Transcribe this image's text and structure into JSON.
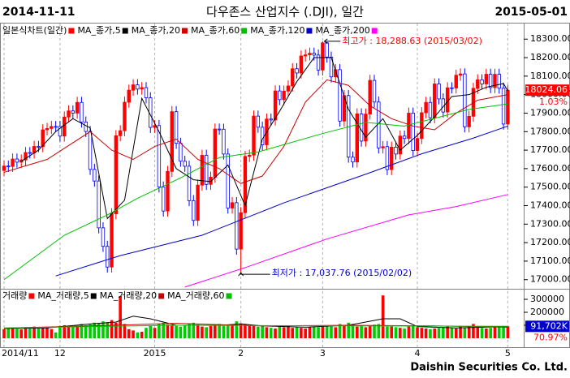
{
  "header": {
    "start_date": "2014-11-11",
    "title": "다우존스 산업지수 (.DJI), 일간",
    "end_date": "2015-05-01"
  },
  "footer": "Daishin Securities Co. Ltd.",
  "chart_data": [
    {
      "type": "candlestick",
      "legend_title": "일본식차트(일간)",
      "legend_color": "#ff0000",
      "up_color": "#ff0000",
      "down_color": "#0000ff",
      "x": [
        0,
        1,
        2,
        3,
        4,
        5,
        6,
        7,
        8,
        9,
        10,
        11,
        12,
        13,
        14,
        15,
        16,
        17,
        18,
        19,
        20,
        21,
        22,
        23,
        24,
        25,
        26,
        27,
        28,
        29,
        30,
        31,
        32,
        33,
        34,
        35,
        36,
        37,
        38,
        39,
        40,
        41,
        42,
        43,
        44,
        45,
        46,
        47,
        48,
        49,
        50,
        51,
        52,
        53,
        54,
        55,
        56,
        57,
        58,
        59,
        60,
        61,
        62,
        63,
        64,
        65,
        66,
        67,
        68,
        69,
        70,
        71,
        72,
        73,
        74,
        75,
        76,
        77,
        78,
        79,
        80,
        81,
        82,
        83,
        84,
        85,
        86,
        87,
        88,
        89,
        90,
        91,
        92,
        93,
        94,
        95,
        96,
        97,
        98,
        99,
        100,
        101,
        102,
        103,
        104,
        105,
        106,
        107,
        108,
        109,
        110,
        111,
        112,
        113,
        114,
        115,
        116,
        117
      ],
      "open": [
        17590,
        17614,
        17612,
        17652,
        17635,
        17647,
        17687,
        17685,
        17720,
        17719,
        17810,
        17817,
        17828,
        17828,
        17776,
        17879,
        17912,
        17900,
        17958,
        17852,
        17801,
        17596,
        17533,
        17280,
        17180,
        17068,
        17356,
        17778,
        17805,
        17959,
        18024,
        18053,
        18030,
        18038,
        17983,
        17823,
        17833,
        17501,
        17371,
        17585,
        17908,
        17737,
        17640,
        17613,
        17427,
        17320,
        17511,
        17672,
        17515,
        17554,
        17814,
        17813,
        17679,
        17387,
        17416,
        17165,
        17362,
        17666,
        17673,
        17884,
        17824,
        17729,
        17868,
        17863,
        18020,
        17973,
        18019,
        18047,
        18140,
        18117,
        18209,
        18215,
        18224,
        18214,
        18133,
        18280,
        18203,
        18096,
        18135,
        17857,
        17995,
        17662,
        17636,
        17896,
        17749,
        17895,
        18077,
        17960,
        17712,
        17719,
        17595,
        17716,
        17679,
        17776,
        17763,
        17900,
        17698,
        17763,
        17902,
        17958,
        17875,
        18058,
        17977,
        17906,
        18037,
        18036,
        18105,
        18112,
        17826,
        17883,
        18034,
        18080,
        18058,
        18110,
        18038,
        18110,
        18035,
        17841
      ],
      "high": [
        17644,
        17644,
        17682,
        17682,
        17677,
        17717,
        17717,
        17750,
        17750,
        17840,
        17847,
        17858,
        17858,
        17858,
        17909,
        17942,
        17942,
        17988,
        17988,
        17882,
        17831,
        17626,
        17563,
        17310,
        17210,
        17386,
        17808,
        17835,
        17989,
        18054,
        18083,
        18083,
        18068,
        18068,
        18013,
        17863,
        17863,
        17531,
        17615,
        17938,
        17938,
        17767,
        17670,
        17643,
        17457,
        17541,
        17702,
        17702,
        17584,
        17844,
        17844,
        17843,
        17709,
        17446,
        17446,
        17392,
        17696,
        17703,
        17914,
        17914,
        17854,
        17898,
        17898,
        18050,
        18050,
        18049,
        18077,
        18170,
        18170,
        18239,
        18245,
        18254,
        18254,
        18244,
        18288.63,
        18285,
        18233,
        18165,
        18165,
        18025,
        18025,
        17692,
        17926,
        17926,
        17925,
        18107,
        18107,
        17990,
        17749,
        17749,
        17746,
        17746,
        17806,
        17806,
        17930,
        17930,
        17793,
        17932,
        17988,
        17988,
        18088,
        18088,
        18007,
        18067,
        18067,
        18135,
        18142,
        18142,
        17913,
        18064,
        18110,
        18110,
        18140,
        18140,
        18140,
        18140,
        18065,
        18054
      ],
      "low": [
        17560,
        17582,
        17582,
        17605,
        17605,
        17617,
        17655,
        17655,
        17689,
        17689,
        17780,
        17787,
        17798,
        17746,
        17746,
        17849,
        17870,
        17870,
        17822,
        17771,
        17566,
        17503,
        17250,
        17150,
        17038,
        17038,
        17326,
        17748,
        17775,
        17929,
        17994,
        18000,
        18000,
        17953,
        17793,
        17793,
        17471,
        17341,
        17341,
        17555,
        17707,
        17610,
        17583,
        17397,
        17290,
        17290,
        17481,
        17485,
        17485,
        17524,
        17783,
        17649,
        17357,
        17357,
        17135,
        17037.76,
        17332,
        17636,
        17643,
        17794,
        17699,
        17699,
        17833,
        17833,
        17943,
        17943,
        17989,
        18017,
        18087,
        18087,
        18179,
        18185,
        18184,
        18103,
        18103,
        18173,
        18066,
        18066,
        17827,
        17827,
        17632,
        17606,
        17606,
        17719,
        17719,
        17865,
        17930,
        17682,
        17682,
        17565,
        17565,
        17649,
        17649,
        17733,
        17733,
        17668,
        17668,
        17733,
        17872,
        17845,
        17845,
        17947,
        17876,
        17876,
        18006,
        18006,
        18075,
        17796,
        17796,
        17853,
        18004,
        18028,
        18028,
        18008,
        18008,
        18005,
        17811,
        17811
      ],
      "close": [
        17614,
        17612,
        17652,
        17635,
        17647,
        17687,
        17685,
        17720,
        17719,
        17810,
        17817,
        17828,
        17828,
        17776,
        17879,
        17912,
        17900,
        17958,
        17852,
        17801,
        17596,
        17533,
        17280,
        17180,
        17068,
        17356,
        17778,
        17805,
        17959,
        18024,
        18053,
        18030,
        18038,
        17983,
        17823,
        17833,
        17501,
        17371,
        17585,
        17908,
        17737,
        17640,
        17613,
        17427,
        17320,
        17511,
        17672,
        17515,
        17554,
        17814,
        17813,
        17679,
        17387,
        17416,
        17165,
        17362,
        17666,
        17673,
        17884,
        17824,
        17729,
        17868,
        17863,
        18020,
        17973,
        18019,
        18047,
        18140,
        18117,
        18209,
        18215,
        18224,
        18214,
        18133,
        18280,
        18203,
        18096,
        18135,
        17857,
        17995,
        17662,
        17636,
        17896,
        17749,
        17895,
        18077,
        17960,
        17712,
        17719,
        17595,
        17716,
        17679,
        17776,
        17763,
        17900,
        17698,
        17763,
        17902,
        17958,
        17875,
        18058,
        17977,
        17906,
        18037,
        18036,
        18105,
        18112,
        17826,
        17883,
        18034,
        18080,
        18058,
        18110,
        18038,
        18110,
        18035,
        17841,
        18024
      ],
      "series": [
        {
          "name": "MA_종가,5",
          "color": "#000000",
          "x": [
            4,
            8,
            12,
            16,
            20,
            24,
            28,
            32,
            36,
            40,
            44,
            48,
            52,
            56,
            60,
            64,
            68,
            72,
            76,
            80,
            84,
            88,
            92,
            96,
            100,
            104,
            108,
            112,
            116,
            117
          ],
          "values": [
            17640,
            17700,
            17800,
            17870,
            17820,
            17330,
            17430,
            17980,
            17800,
            17600,
            17540,
            17530,
            17620,
            17400,
            17760,
            17910,
            18070,
            18200,
            18200,
            17920,
            17770,
            17870,
            17700,
            17780,
            17880,
            17990,
            18000,
            18040,
            18060,
            18020
          ]
        },
        {
          "name": "MA_종가,20",
          "color": "#cc0000",
          "x": [
            0,
            10,
            20,
            25,
            30,
            35,
            40,
            45,
            50,
            55,
            60,
            65,
            70,
            75,
            80,
            85,
            90,
            95,
            100,
            105,
            110,
            117
          ],
          "values": [
            17580,
            17650,
            17800,
            17700,
            17650,
            17720,
            17760,
            17650,
            17600,
            17520,
            17560,
            17720,
            17960,
            18080,
            18050,
            17940,
            17870,
            17830,
            17810,
            17900,
            17970,
            18000
          ]
        },
        {
          "name": "MA_종가,60",
          "color": "#00c000",
          "x": [
            0,
            14,
            24,
            31,
            41,
            50,
            59,
            74,
            84,
            93,
            108,
            117
          ],
          "values": [
            17000,
            17240,
            17350,
            17440,
            17550,
            17660,
            17690,
            17790,
            17850,
            17830,
            17920,
            17950
          ]
        },
        {
          "name": "MA_종가,120",
          "color": "#0000cc",
          "x": [
            12,
            27,
            46,
            65,
            84,
            97,
            109,
            117
          ],
          "values": [
            17020,
            17130,
            17240,
            17415,
            17570,
            17680,
            17765,
            17830
          ]
        },
        {
          "name": "MA_종가,200",
          "color": "#ff00ff",
          "x": [
            42,
            56,
            75,
            94,
            105,
            117
          ],
          "values": [
            16960,
            17065,
            17220,
            17350,
            17395,
            17460
          ]
        }
      ],
      "xlim": [
        -0.94,
        120.7
      ],
      "xticks": [
        {
          "value": 0,
          "label": "2014/11"
        },
        {
          "value": 13,
          "label": "12"
        },
        {
          "value": 35,
          "label": "2015"
        },
        {
          "value": 55,
          "label": "2"
        },
        {
          "value": 74,
          "label": "3"
        },
        {
          "value": 96,
          "label": "4"
        },
        {
          "value": 117,
          "label": "5"
        }
      ],
      "ylim": [
        16955,
        18380
      ],
      "yticks": [
        {
          "value": 17000,
          "label": "17000.00"
        },
        {
          "value": 17100,
          "label": "17100.00"
        },
        {
          "value": 17200,
          "label": "17200.00"
        },
        {
          "value": 17300,
          "label": "17300.00"
        },
        {
          "value": 17400,
          "label": "17400.00"
        },
        {
          "value": 17500,
          "label": "17500.00"
        },
        {
          "value": 17600,
          "label": "17600.00"
        },
        {
          "value": 17700,
          "label": "17700.00"
        },
        {
          "value": 17800,
          "label": "17800.00"
        },
        {
          "value": 17900,
          "label": "17900.00"
        },
        {
          "value": 18000,
          "label": "18000.00"
        },
        {
          "value": 18100,
          "label": "18100.00"
        },
        {
          "value": 18200,
          "label": "18200.00"
        },
        {
          "value": 18300,
          "label": "18300.00"
        }
      ],
      "last": 18024.06,
      "change": {
        "value": 1.03,
        "label": "1.03%"
      },
      "annotations": [
        {
          "text": "최고가 : 18,288.63 (2015/03/02)",
          "x": 74,
          "y": 18288.63,
          "color": "#ff0000"
        },
        {
          "text": "최저가 : 17,037.76 (2015/02/02)",
          "x": 55,
          "y": 17037.76,
          "color": "#0000cc"
        }
      ]
    },
    {
      "type": "volume",
      "legend_title": "거래량",
      "legend_color": "#ff0000",
      "up_color": "#ff0000",
      "down_color": "#00cc00",
      "values": [
        70000,
        75000,
        80000,
        72000,
        68000,
        85000,
        78000,
        90000,
        75000,
        82000,
        88000,
        70000,
        45000,
        95000,
        100000,
        90000,
        85000,
        95000,
        110000,
        100000,
        105000,
        120000,
        115000,
        130000,
        125000,
        140000,
        120000,
        325000,
        110000,
        70000,
        60000,
        45000,
        50000,
        80000,
        95000,
        80000,
        110000,
        120000,
        105000,
        100000,
        95000,
        90000,
        100000,
        115000,
        120000,
        105000,
        90000,
        85000,
        95000,
        100000,
        110000,
        95000,
        105000,
        100000,
        130000,
        115000,
        110000,
        105000,
        95000,
        90000,
        100000,
        85000,
        80000,
        75000,
        90000,
        85000,
        95000,
        80000,
        85000,
        80000,
        75000,
        85000,
        90000,
        85000,
        100000,
        95000,
        90000,
        85000,
        110000,
        95000,
        120000,
        110000,
        90000,
        95000,
        85000,
        100000,
        105000,
        110000,
        330000,
        90000,
        90000,
        85000,
        80000,
        75000,
        90000,
        100000,
        85000,
        80000,
        75000,
        70000,
        75000,
        80000,
        85000,
        90000,
        80000,
        75000,
        90000,
        80000,
        95000,
        110000,
        85000,
        80000,
        75000,
        80000,
        85000,
        90000,
        95000,
        91702
      ],
      "series": [
        {
          "name": "MA_거래량,5",
          "color": "#000000",
          "x": [
            0,
            10,
            20,
            26,
            30,
            34,
            40,
            50,
            55,
            60,
            70,
            80,
            88,
            92,
            96,
            105,
            117
          ],
          "values": [
            75000,
            80000,
            110000,
            125000,
            170000,
            150000,
            100000,
            100000,
            110000,
            95000,
            85000,
            100000,
            150000,
            150000,
            90000,
            80000,
            90000
          ]
        },
        {
          "name": "MA_거래량,20",
          "color": "#cc0000",
          "x": [
            0,
            20,
            40,
            60,
            80,
            100,
            117
          ],
          "values": [
            78000,
            95000,
            115000,
            95000,
            100000,
            95000,
            85000
          ]
        },
        {
          "name": "MA_거래량,60",
          "color": "#00c000",
          "x": [
            0,
            40,
            80,
            117
          ],
          "values": [
            80000,
            100000,
            95000,
            92000
          ]
        }
      ],
      "ylim": [
        -68750,
        375000
      ],
      "yticks": [
        100000,
        200000,
        300000
      ],
      "last": {
        "value": 91702,
        "label": "91,702K"
      },
      "ratio": {
        "value": 70.97,
        "label": "70.97%"
      }
    }
  ]
}
